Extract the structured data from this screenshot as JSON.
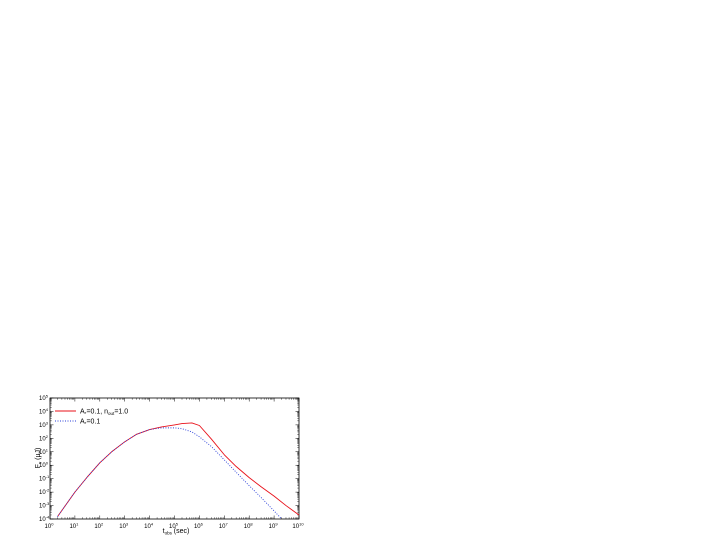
{
  "chart_data": {
    "type": "line",
    "title": "",
    "xlabel": {
      "main": "t",
      "sub": "obs",
      "suffix": " (sec)"
    },
    "ylabel": {
      "main": "F",
      "sub": "ν",
      "suffix": " (μJ)"
    },
    "xscale": "log",
    "yscale": "log",
    "xlim": [
      1,
      10000000000
    ],
    "ylim": [
      0.0001,
      100000
    ],
    "x_ticks": [
      {
        "base": "10",
        "exp": "0"
      },
      {
        "base": "10",
        "exp": "1"
      },
      {
        "base": "10",
        "exp": "2"
      },
      {
        "base": "10",
        "exp": "3"
      },
      {
        "base": "10",
        "exp": "4"
      },
      {
        "base": "10",
        "exp": "5"
      },
      {
        "base": "10",
        "exp": "6"
      },
      {
        "base": "10",
        "exp": "7"
      },
      {
        "base": "10",
        "exp": "8"
      },
      {
        "base": "10",
        "exp": "9"
      },
      {
        "base": "10",
        "exp": "10"
      }
    ],
    "y_ticks": [
      {
        "base": "10",
        "exp": "-4"
      },
      {
        "base": "10",
        "exp": "-3"
      },
      {
        "base": "10",
        "exp": "-2"
      },
      {
        "base": "10",
        "exp": "-1"
      },
      {
        "base": "10",
        "exp": "0"
      },
      {
        "base": "10",
        "exp": "1"
      },
      {
        "base": "10",
        "exp": "2"
      },
      {
        "base": "10",
        "exp": "3"
      },
      {
        "base": "10",
        "exp": "4"
      },
      {
        "base": "10",
        "exp": "5"
      }
    ],
    "legend_position": "top-left",
    "series": [
      {
        "legend": {
          "a": "A",
          "a_sub": "*",
          "mid": "=0.1, n",
          "n_sub": "out",
          "tail": "=1.0"
        },
        "color": "#e8111a",
        "dash": "solid",
        "x": [
          2,
          10,
          30,
          100,
          300,
          1000,
          3000,
          10000,
          30000,
          100000,
          200000,
          500000,
          1000000,
          3000000,
          10000000,
          30000000,
          100000000,
          300000000,
          1000000000,
          3000000000,
          10000000000
        ],
        "y": [
          0.00015,
          0.01,
          0.12,
          1.5,
          10,
          55,
          200,
          450,
          700,
          1000,
          1250,
          1400,
          900,
          90,
          6,
          0.8,
          0.12,
          0.025,
          0.005,
          0.001,
          0.0002
        ]
      },
      {
        "legend": {
          "a": "A",
          "a_sub": "*",
          "mid": "=0.1",
          "n_sub": "",
          "tail": ""
        },
        "color": "#2a3fd8",
        "dash": "dotted",
        "x": [
          2,
          10,
          30,
          100,
          300,
          1000,
          3000,
          10000,
          30000,
          100000,
          200000,
          500000,
          1000000,
          3000000,
          10000000,
          30000000,
          100000000,
          300000000,
          1000000000,
          2000000000
        ],
        "y": [
          0.00015,
          0.01,
          0.12,
          1.5,
          10,
          55,
          200,
          450,
          600,
          600,
          520,
          300,
          130,
          25,
          2.5,
          0.3,
          0.03,
          0.004,
          0.0004,
          0.0001
        ]
      }
    ]
  }
}
